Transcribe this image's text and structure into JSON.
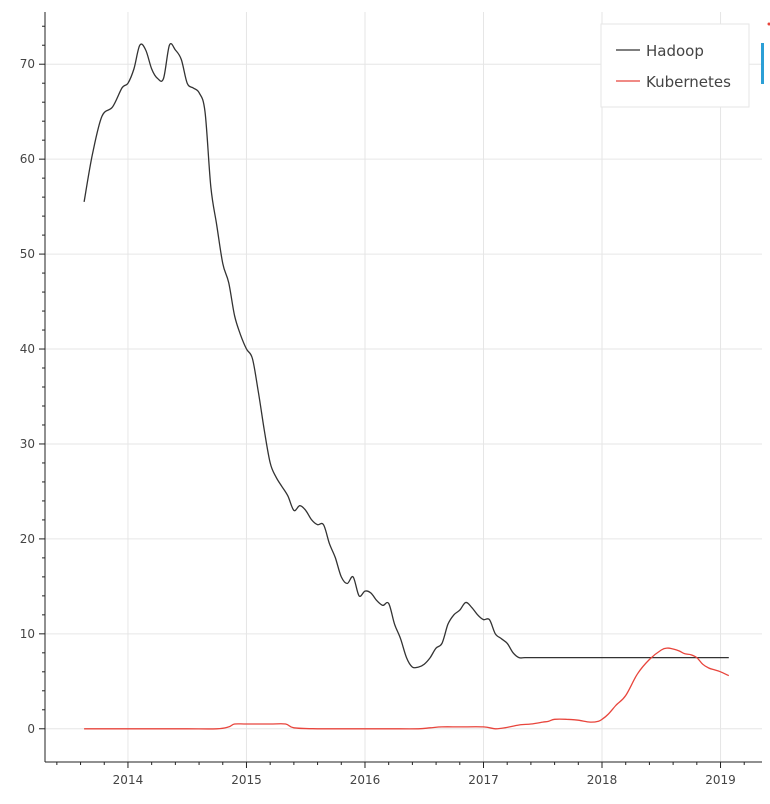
{
  "chart_data": {
    "type": "line",
    "title": "",
    "xlabel": "",
    "ylabel": "",
    "xlim": [
      2013.3,
      2019.35
    ],
    "ylim": [
      -3.5,
      75.5
    ],
    "x_ticks": [
      2014,
      2015,
      2016,
      2017,
      2018,
      2019
    ],
    "x_tick_labels": [
      "2014",
      "2015",
      "2016",
      "2017",
      "2018",
      "2019"
    ],
    "y_ticks": [
      0,
      10,
      20,
      30,
      40,
      50,
      60,
      70
    ],
    "y_tick_labels": [
      "0",
      "10",
      "20",
      "30",
      "40",
      "50",
      "60",
      "70"
    ],
    "grid": true,
    "legend_position": "top-right",
    "series": [
      {
        "name": "Hadoop",
        "color": "#333333",
        "x": [
          2013.63,
          2013.7,
          2013.78,
          2013.87,
          2013.95,
          2014.0,
          2014.05,
          2014.1,
          2014.15,
          2014.2,
          2014.25,
          2014.3,
          2014.35,
          2014.4,
          2014.45,
          2014.5,
          2014.55,
          2014.6,
          2014.65,
          2014.7,
          2014.75,
          2014.8,
          2014.85,
          2014.9,
          2014.95,
          2015.0,
          2015.05,
          2015.1,
          2015.15,
          2015.2,
          2015.25,
          2015.3,
          2015.35,
          2015.4,
          2015.45,
          2015.5,
          2015.55,
          2015.6,
          2015.65,
          2015.7,
          2015.75,
          2015.8,
          2015.85,
          2015.9,
          2015.95,
          2016.0,
          2016.05,
          2016.1,
          2016.15,
          2016.2,
          2016.25,
          2016.3,
          2016.35,
          2016.4,
          2016.45,
          2016.5,
          2016.55,
          2016.6,
          2016.65,
          2016.7,
          2016.75,
          2016.8,
          2016.85,
          2016.9,
          2016.95,
          2017.0,
          2017.05,
          2017.1,
          2017.15,
          2017.2,
          2017.25,
          2017.3,
          2017.35,
          2017.4,
          2017.45,
          2017.5,
          2017.55,
          2017.6,
          2017.65,
          2017.7,
          2017.75,
          2017.8,
          2017.85,
          2017.9,
          2017.95,
          2018.0,
          2018.05,
          2018.1,
          2018.15,
          2018.2,
          2018.25,
          2018.3,
          2018.35,
          2018.4,
          2018.45,
          2018.5,
          2018.55,
          2018.6,
          2018.65,
          2018.7,
          2018.75,
          2018.8,
          2018.85,
          2018.9,
          2018.95,
          2019.0,
          2019.05,
          2019.07
        ],
        "values": [
          55.5,
          60.5,
          64.5,
          65.5,
          67.5,
          68.0,
          69.5,
          72.0,
          71.5,
          69.5,
          68.5,
          68.5,
          72.0,
          71.5,
          70.5,
          68.0,
          67.5,
          67.0,
          65.0,
          57.0,
          53.0,
          49.0,
          47.0,
          43.5,
          41.5,
          40.0,
          39.0,
          35.5,
          31.5,
          28.0,
          26.5,
          25.5,
          24.5,
          23.0,
          23.5,
          23.0,
          22.0,
          21.5,
          21.5,
          19.5,
          18.0,
          16.0,
          15.3,
          16.0,
          14.0,
          14.5,
          14.3,
          13.5,
          13.0,
          13.2,
          11.0,
          9.5,
          7.5,
          6.5,
          6.5,
          6.8,
          7.5,
          8.5,
          9.0,
          11.0,
          12.0,
          12.5,
          13.3,
          12.8,
          12.0,
          11.5,
          11.5,
          10.0,
          9.5,
          9.0,
          8.0,
          7.5,
          7.5,
          7.5,
          7.5,
          7.5,
          7.5,
          7.5,
          7.5,
          7.5,
          7.5,
          7.5,
          7.5,
          7.5,
          7.5,
          7.5,
          7.5,
          7.5,
          7.5,
          7.5,
          7.5,
          7.5,
          7.5,
          7.5,
          7.5,
          7.5,
          7.5,
          7.5,
          7.5,
          7.5,
          7.5,
          7.5,
          7.5,
          7.5,
          7.5,
          7.5,
          7.5,
          7.5
        ]
      },
      {
        "name": "Kubernetes",
        "color": "#e8453c",
        "x": [
          2013.63,
          2013.9,
          2014.2,
          2014.5,
          2014.75,
          2014.85,
          2014.9,
          2015.0,
          2015.2,
          2015.33,
          2015.4,
          2015.6,
          2015.9,
          2016.2,
          2016.45,
          2016.55,
          2016.65,
          2016.8,
          2017.0,
          2017.1,
          2017.18,
          2017.3,
          2017.4,
          2017.5,
          2017.55,
          2017.6,
          2017.7,
          2017.8,
          2017.9,
          2017.97,
          2018.0,
          2018.05,
          2018.12,
          2018.2,
          2018.3,
          2018.4,
          2018.5,
          2018.55,
          2018.6,
          2018.65,
          2018.7,
          2018.75,
          2018.8,
          2018.85,
          2018.9,
          2018.95,
          2019.0,
          2019.07
        ],
        "values": [
          0,
          0,
          0,
          0,
          0,
          0.2,
          0.5,
          0.5,
          0.5,
          0.5,
          0.1,
          0,
          0,
          0,
          0,
          0.1,
          0.2,
          0.2,
          0.2,
          0,
          0.1,
          0.4,
          0.5,
          0.7,
          0.8,
          1.0,
          1.0,
          0.9,
          0.7,
          0.8,
          1.0,
          1.5,
          2.5,
          3.5,
          5.8,
          7.3,
          8.3,
          8.5,
          8.4,
          8.2,
          7.9,
          7.8,
          7.5,
          6.8,
          6.4,
          6.2,
          6.0,
          5.6
        ]
      }
    ]
  }
}
